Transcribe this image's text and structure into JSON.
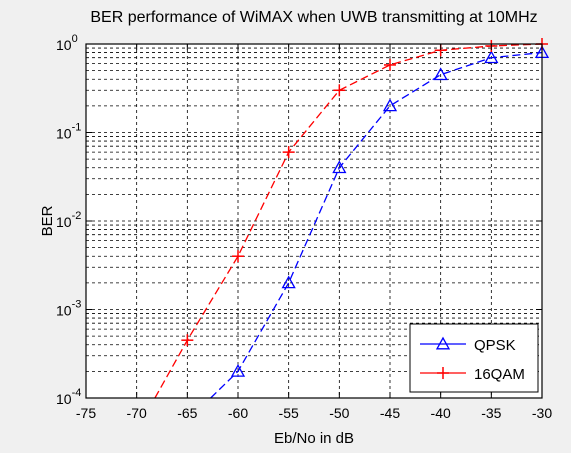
{
  "chart_data": {
    "type": "line",
    "title": "BER performance of WiMAX when UWB transmitting at 10MHz",
    "xlabel": "Eb/No in dB",
    "ylabel": "BER",
    "xlim": [
      -75,
      -30
    ],
    "ylim": [
      0.0001,
      1
    ],
    "yscale": "log",
    "grid": true,
    "legend_position": "bottom-right",
    "x_ticks": [
      -75,
      -70,
      -65,
      -60,
      -55,
      -50,
      -45,
      -40,
      -35,
      -30
    ],
    "x_tick_labels": [
      "-75",
      "-70",
      "-65",
      "-60",
      "-55",
      "-50",
      "-45",
      "-40",
      "-35",
      "-30"
    ],
    "y_ticks": [
      {
        "value": 1,
        "base": "10",
        "exp": "0"
      },
      {
        "value": 0.1,
        "base": "10",
        "exp": "-1"
      },
      {
        "value": 0.01,
        "base": "10",
        "exp": "-2"
      },
      {
        "value": 0.001,
        "base": "10",
        "exp": "-3"
      },
      {
        "value": 0.0001,
        "base": "10",
        "exp": "-4"
      }
    ],
    "series": [
      {
        "name": "QPSK",
        "color": "#0000ff",
        "marker": "triangle",
        "x": [
          -62.7,
          -60,
          -55,
          -50,
          -45,
          -40,
          -35,
          -30
        ],
        "y": [
          0.0001,
          0.0002,
          0.002,
          0.04,
          0.2,
          0.45,
          0.7,
          0.8
        ]
      },
      {
        "name": "16QAM",
        "color": "#ff0000",
        "marker": "plus",
        "x": [
          -68.2,
          -65,
          -60,
          -55,
          -50,
          -45,
          -40,
          -35,
          -30
        ],
        "y": [
          0.0001,
          0.00045,
          0.004,
          0.06,
          0.3,
          0.58,
          0.85,
          0.95,
          1.0
        ]
      }
    ]
  }
}
